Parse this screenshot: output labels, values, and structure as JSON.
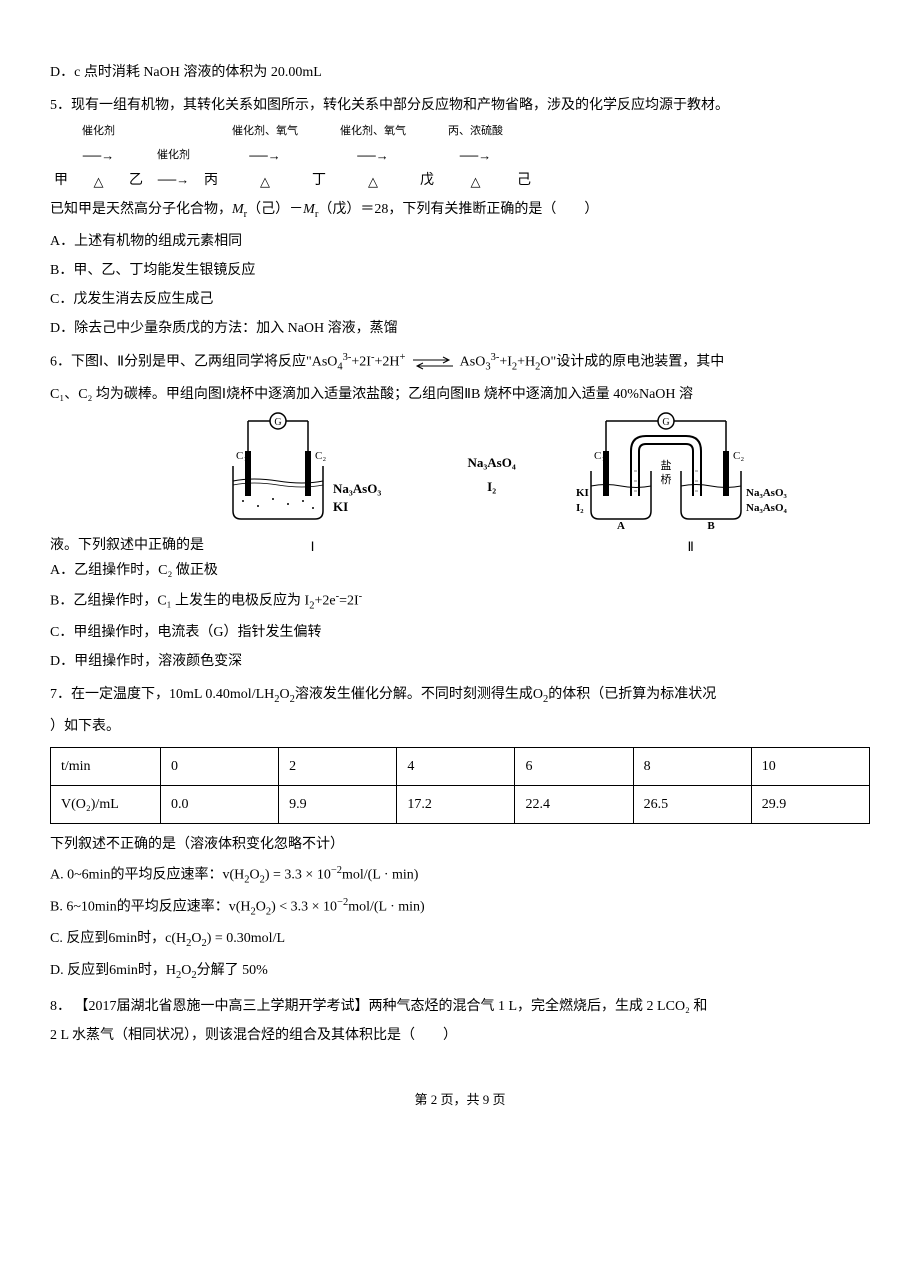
{
  "q4_optionD": "D．c 点时消耗 NaOH 溶液的体积为 20.00mL",
  "q5": {
    "intro": "5．现有一组有机物，其转化关系如图所示，转化关系中部分反应物和产物省略，涉及的化学反应均源于教材。",
    "chain": {
      "nodes": [
        "甲",
        "乙",
        "丙",
        "丁",
        "戊",
        "己"
      ],
      "labels": [
        "催化剂",
        "催化剂",
        "催化剂、氧气",
        "催化剂、氧气",
        "丙、浓硫酸"
      ],
      "delta": "△"
    },
    "note_html": "已知甲是天然高分子化合物，<i>M</i><sub>r</sub>（己）－<i>M</i><sub>r</sub>（戊）＝28，下列有关推断正确的是（　　）",
    "A": "A．上述有机物的组成元素相同",
    "B": "B．甲、乙、丁均能发生银镜反应",
    "C": "C．戊发生消去反应生成己",
    "D": "D．除去己中少量杂质戊的方法：加入 NaOH 溶液，蒸馏"
  },
  "q6": {
    "intro_p1": "6．下图Ⅰ、Ⅱ分别是甲、乙两组同学将反应\"AsO",
    "intro_p2": "AsO",
    "intro_p3": "\"设计成的原电池装置，其中",
    "intro_line2": "C₁、C₂ 均为碳棒。甲组向图Ⅰ烧杯中逐滴加入适量浓盐酸；乙组向图ⅡB 烧杯中逐滴加入适量 40%NaOH 溶",
    "afterfig": "液。下列叙述中正确的是",
    "diagram1_caption": "Ⅰ",
    "diagram2_caption": "Ⅱ",
    "d1_labels": {
      "G": "G",
      "C1": "C₁",
      "C2": "C₂",
      "salt1": "Na₃AsO₃",
      "salt2": "KI",
      "salt3": "Na₃AsO₄",
      "salt4": "I₂"
    },
    "d2_labels": {
      "G": "G",
      "C1": "C₁",
      "C2": "C₂",
      "bridge": "盐桥",
      "A": "A",
      "B": "B",
      "KI": "KI",
      "I2": "I₂",
      "s3": "Na₃AsO₃",
      "s4": "Na₃AsO₄"
    },
    "A": "A．乙组操作时，C₂ 做正极",
    "B_html": "B．乙组操作时，C₁ 上发生的电极反应为 I<sub>2</sub>+2e<sup>-</sup>=2I<sup>-</sup>",
    "C": "C．甲组操作时，电流表（G）指针发生偏转",
    "D": "D．甲组操作时，溶液颜色变深"
  },
  "q7": {
    "intro_html": "7．在一定温度下，<span class=\"chem-formula\">10mL 0.40mol/LH<sub>2</sub>O<sub>2</sub></span>溶液发生催化分解。不同时刻测得生成<span class=\"chem-formula\">O<sub>2</sub></span>的体积（已折算为标准状况",
    "intro2": "）如下表。",
    "table": {
      "row1": [
        "t/min",
        "0",
        "2",
        "4",
        "6",
        "8",
        "10"
      ],
      "row2": [
        "V(O₂)/mL",
        "0.0",
        "9.9",
        "17.2",
        "22.4",
        "26.5",
        "29.9"
      ]
    },
    "after_table": "下列叙述不正确的是（溶液体积变化忽略不计）",
    "A_html": "A.  0~6min的平均反应速率：v(H<sub>2</sub>O<sub>2</sub>) = 3.3 × 10<sup>−2</sup>mol/(L · min)",
    "B_html": "B.  6~10min的平均反应速率：v(H<sub>2</sub>O<sub>2</sub>) < 3.3 × 10<sup>−2</sup>mol/(L · min)",
    "C_html": "C.  反应到6min时，c(H<sub>2</sub>O<sub>2</sub>) = 0.30mol/L",
    "D_html": "D.  反应到6min时，H<sub>2</sub>O<sub>2</sub>分解了 50%"
  },
  "q8": {
    "intro": "8． 【2017届湖北省恩施一中高三上学期开学考试】两种气态烃的混合气 1 L，完全燃烧后，生成 2 LCO₂ 和",
    "line2": "2 L 水蒸气（相同状况），则该混合烃的组合及其体积比是（　　）"
  },
  "footer": "第 2 页，共 9 页"
}
